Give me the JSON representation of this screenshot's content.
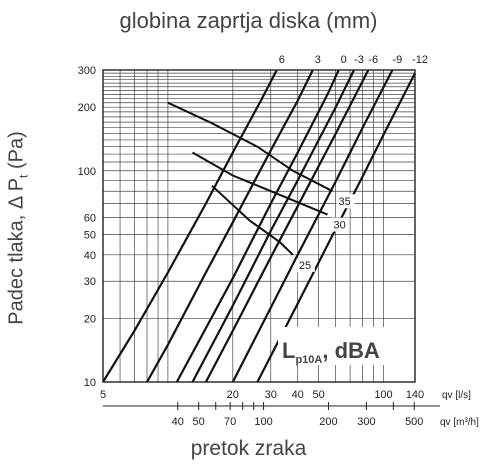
{
  "title": "globina zaprtja diska (mm)",
  "ylabel_main": "Padec tlaka, Δ P",
  "ylabel_sub": "t",
  "ylabel_unit": " (Pa)",
  "xlabel": "pretok zraka",
  "sound_label_main": "L",
  "sound_label_sub": "p10A",
  "sound_label_unit": ", dBA",
  "qv_ls_unit": "qv [l/s]",
  "qv_m3h_unit": "qv [m³/h]",
  "chart_data": {
    "type": "line",
    "x_scale": "log",
    "y_scale": "log",
    "xlim": [
      5,
      140
    ],
    "ylim": [
      10,
      300
    ],
    "x_ticks_ls": [
      5,
      20,
      30,
      40,
      50,
      100,
      140
    ],
    "x_ticks_m3h": [
      40,
      50,
      70,
      100,
      200,
      300,
      500
    ],
    "y_ticks": [
      10,
      20,
      30,
      40,
      50,
      60,
      100,
      200,
      300
    ],
    "grid": true,
    "series": [
      {
        "name": "6",
        "points": [
          [
            5,
            10
          ],
          [
            7,
            17.5
          ],
          [
            10,
            33
          ],
          [
            15,
            70
          ],
          [
            20,
            122
          ],
          [
            27,
            215
          ],
          [
            32,
            300
          ]
        ]
      },
      {
        "name": "3",
        "points": [
          [
            8,
            10
          ],
          [
            10,
            15
          ],
          [
            15,
            33
          ],
          [
            20,
            57
          ],
          [
            30,
            125
          ],
          [
            40,
            215
          ],
          [
            47,
            300
          ]
        ]
      },
      {
        "name": "0",
        "points": [
          [
            11,
            10
          ],
          [
            15,
            18
          ],
          [
            20,
            31
          ],
          [
            30,
            70
          ],
          [
            40,
            122
          ],
          [
            55,
            230
          ],
          [
            62,
            300
          ]
        ]
      },
      {
        "name": "-3",
        "points": [
          [
            13,
            10
          ],
          [
            20,
            23
          ],
          [
            30,
            52
          ],
          [
            40,
            90
          ],
          [
            60,
            200
          ],
          [
            73,
            300
          ]
        ]
      },
      {
        "name": "-6",
        "points": [
          [
            15,
            10
          ],
          [
            20,
            17.5
          ],
          [
            30,
            39
          ],
          [
            40,
            68
          ],
          [
            60,
            150
          ],
          [
            85,
            300
          ]
        ]
      },
      {
        "name": "-9",
        "points": [
          [
            20,
            10
          ],
          [
            30,
            22.5
          ],
          [
            40,
            40
          ],
          [
            60,
            89
          ],
          [
            80,
            160
          ],
          [
            110,
            300
          ]
        ]
      },
      {
        "name": "-12",
        "points": [
          [
            26,
            10
          ],
          [
            40,
            23.5
          ],
          [
            60,
            53
          ],
          [
            80,
            94
          ],
          [
            100,
            148
          ],
          [
            140,
            290
          ]
        ]
      }
    ],
    "sound_curves": [
      {
        "label": "25",
        "points": [
          [
            16,
            85
          ],
          [
            24,
            58
          ],
          [
            33,
            46
          ],
          [
            38,
            40
          ]
        ]
      },
      {
        "label": "30",
        "points": [
          [
            13,
            122
          ],
          [
            20,
            95
          ],
          [
            33,
            77
          ],
          [
            55,
            62
          ]
        ]
      },
      {
        "label": "35",
        "points": [
          [
            10,
            210
          ],
          [
            16,
            168
          ],
          [
            26,
            130
          ],
          [
            38,
            100
          ],
          [
            58,
            80
          ]
        ]
      }
    ]
  }
}
